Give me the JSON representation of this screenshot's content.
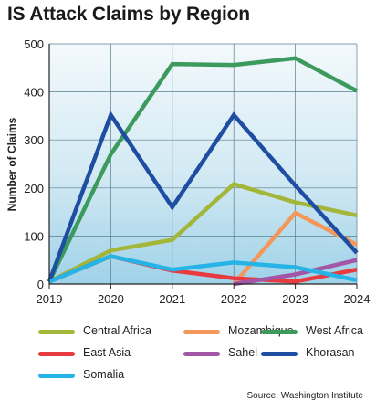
{
  "chart_data": {
    "type": "line",
    "title": "IS Attack Claims by Region",
    "ylabel": "Number of Claims",
    "xlabel": "",
    "x": [
      "2019",
      "2020",
      "2021",
      "2022",
      "2023",
      "2024"
    ],
    "ylim": [
      0,
      500
    ],
    "yticks": [
      0,
      100,
      200,
      300,
      400,
      500
    ],
    "grid": true,
    "legend_position": "bottom",
    "series": [
      {
        "name": "Central Africa",
        "color": "#a3b63a",
        "values": [
          5,
          70,
          92,
          208,
          170,
          143
        ]
      },
      {
        "name": "Mozambique",
        "color": "#f4975a",
        "values": [
          null,
          null,
          null,
          0,
          148,
          82
        ]
      },
      {
        "name": "West Africa",
        "color": "#3b9a5c",
        "values": [
          5,
          270,
          458,
          456,
          470,
          402
        ]
      },
      {
        "name": "East Asia",
        "color": "#e83b3f",
        "values": [
          5,
          58,
          28,
          12,
          5,
          30
        ]
      },
      {
        "name": "Sahel",
        "color": "#a356a6",
        "values": [
          null,
          null,
          null,
          0,
          20,
          50
        ]
      },
      {
        "name": "Khorasan",
        "color": "#1e4da1",
        "values": [
          5,
          352,
          160,
          352,
          205,
          65
        ]
      },
      {
        "name": "Somalia",
        "color": "#26b3e6",
        "values": [
          5,
          58,
          30,
          45,
          35,
          8
        ]
      }
    ],
    "source": "Source: Washington Institute"
  }
}
